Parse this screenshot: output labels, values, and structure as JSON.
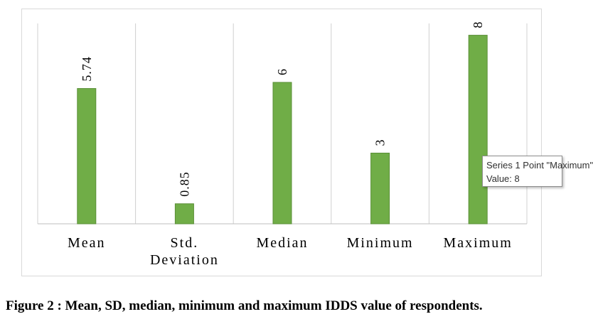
{
  "chart_data": {
    "type": "bar",
    "categories": [
      "Mean",
      "Std. Deviation",
      "Median",
      "Minimum",
      "Maximum"
    ],
    "category_lines": [
      [
        "Mean"
      ],
      [
        "Std.",
        "Deviation"
      ],
      [
        "Median"
      ],
      [
        "Minimum"
      ],
      [
        "Maximum"
      ]
    ],
    "values": [
      5.74,
      0.85,
      6,
      3,
      8
    ],
    "data_labels": [
      "5.74",
      "0.85",
      "6",
      "3",
      "8"
    ],
    "title": "",
    "xlabel": "",
    "ylabel": "",
    "ylim": [
      0,
      8.5
    ],
    "grid": "vertical",
    "legend": "none",
    "bar_color": "#70ad47"
  },
  "tooltip": {
    "line1": "Series 1 Point \"Maximum\"",
    "line2": "Value: 8"
  },
  "caption": "Figure 2 : Mean, SD, median, minimum and maximum IDDS value of respondents."
}
